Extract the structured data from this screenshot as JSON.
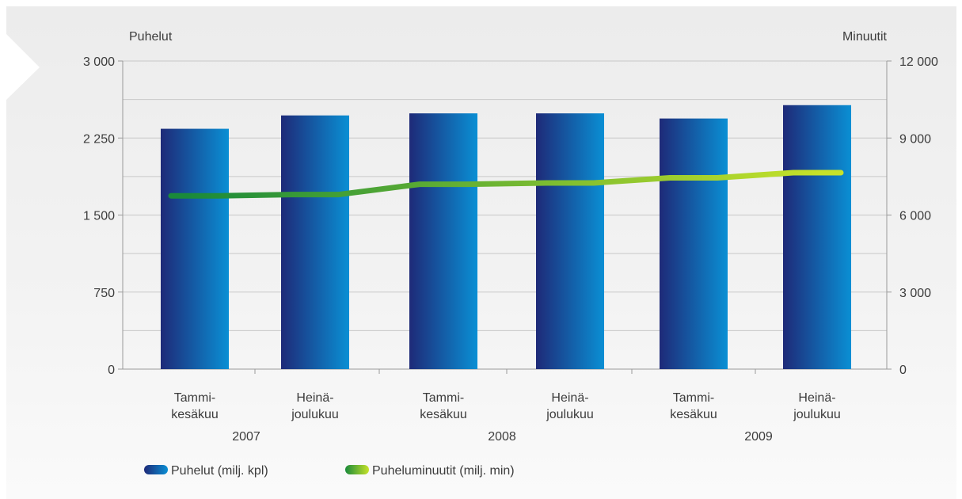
{
  "chart_data": {
    "type": "bar",
    "categories": [
      {
        "line1": "Tammi-",
        "line2": "kesäkuu"
      },
      {
        "line1": "Heinä-",
        "line2": "joulukuu"
      },
      {
        "line1": "Tammi-",
        "line2": "kesäkuu"
      },
      {
        "line1": "Heinä-",
        "line2": "joulukuu"
      },
      {
        "line1": "Tammi-",
        "line2": "kesäkuu"
      },
      {
        "line1": "Heinä-",
        "line2": "joulukuu"
      }
    ],
    "years": [
      "2007",
      "2008",
      "2009"
    ],
    "left_axis": {
      "title": "Puhelut",
      "range": [
        0,
        3000
      ],
      "ticks": [
        {
          "value": 0,
          "label": "0"
        },
        {
          "value": 750,
          "label": "750"
        },
        {
          "value": 1500,
          "label": "1 500"
        },
        {
          "value": 2250,
          "label": "2 250"
        },
        {
          "value": 3000,
          "label": "3 000"
        }
      ]
    },
    "right_axis": {
      "title": "Minuutit",
      "range": [
        0,
        12000
      ],
      "ticks": [
        {
          "value": 0,
          "label": "0"
        },
        {
          "value": 3000,
          "label": "3 000"
        },
        {
          "value": 6000,
          "label": "6 000"
        },
        {
          "value": 9000,
          "label": "9 000"
        },
        {
          "value": 12000,
          "label": "12 000"
        }
      ]
    },
    "series": [
      {
        "name": "Puhelut (milj. kpl)",
        "kind": "bar",
        "axis": "left",
        "color_dark": "#1e2a78",
        "color_light": "#0a8fd4",
        "values": [
          2340,
          2470,
          2490,
          2490,
          2440,
          2570
        ]
      },
      {
        "name": "Puheluminuutit (milj. min)",
        "kind": "line",
        "axis": "right",
        "color_start": "#1a8a3a",
        "color_end": "#c6e22a",
        "values": [
          6750,
          6800,
          7200,
          7250,
          7450,
          7650
        ]
      }
    ],
    "grid": true,
    "legend_position": "bottom-left"
  }
}
